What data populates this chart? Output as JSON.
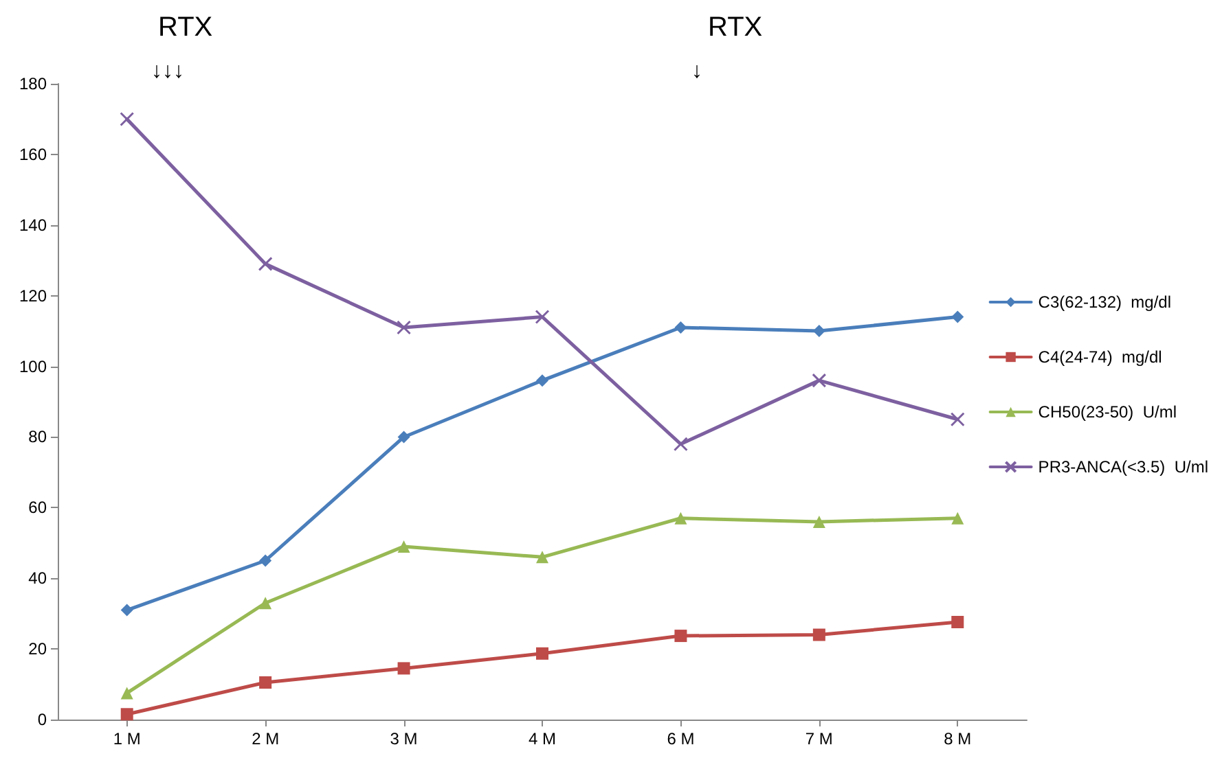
{
  "chart_data": {
    "type": "line",
    "categories": [
      "1 M",
      "2 M",
      "3 M",
      "4 M",
      "6 M",
      "7 M",
      "8 M"
    ],
    "series": [
      {
        "name": "C3(62-132)  mg/dl",
        "color": "#4a7ebb",
        "marker": "diamond",
        "values": [
          31,
          45,
          80,
          96,
          111,
          110,
          114
        ]
      },
      {
        "name": "C4(24-74)  mg/dl",
        "color": "#be4b48",
        "marker": "square",
        "values": [
          1.5,
          10.5,
          14.5,
          18.7,
          23.7,
          24,
          27.6
        ]
      },
      {
        "name": "CH50(23-50)  U/ml",
        "color": "#98b954",
        "marker": "triangle",
        "values": [
          7.5,
          33,
          49,
          46,
          57,
          56,
          57
        ]
      },
      {
        "name": "PR3-ANCA(<3.5)  U/ml",
        "color": "#7d60a0",
        "marker": "cross",
        "values": [
          170,
          129,
          111,
          114,
          78,
          96,
          85
        ]
      }
    ],
    "ylim": [
      0,
      180
    ],
    "yticks": [
      0,
      20,
      40,
      60,
      80,
      100,
      120,
      140,
      160,
      180
    ],
    "grid": false,
    "legend": "right",
    "annotations": [
      "RTX",
      "↓↓↓",
      "RTX",
      "↓"
    ]
  }
}
